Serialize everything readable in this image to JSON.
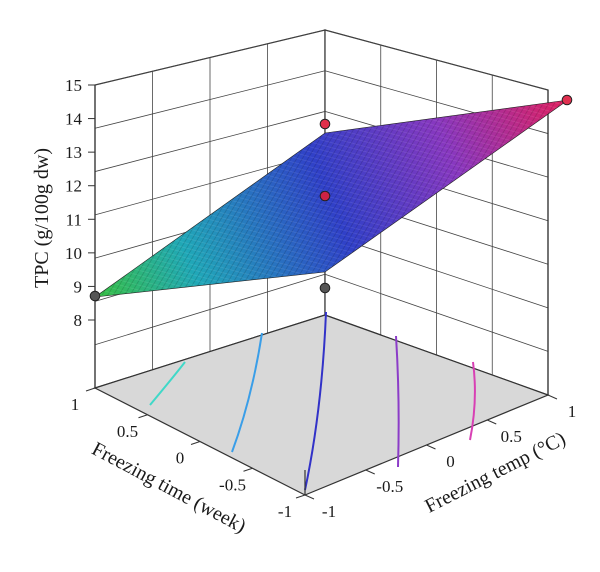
{
  "chart_data": {
    "type": "surface",
    "title": "",
    "zlabel": "TPC (g/100g dw)",
    "xlabel": "Freezing time (week)",
    "ylabel": "Freezing temp (°C)",
    "z_ticks": [
      "8",
      "9",
      "10",
      "11",
      "12",
      "13",
      "14",
      "15"
    ],
    "x_ticks": [
      "1",
      "0.5",
      "0",
      "-0.5",
      "-1"
    ],
    "y_ticks": [
      "-1",
      "-0.5",
      "0",
      "0.5",
      "1"
    ],
    "xlim": [
      -1,
      1
    ],
    "ylim": [
      -1,
      1
    ],
    "zlim": [
      8,
      15
    ],
    "surface_corners": [
      {
        "time": 1,
        "temp": -1,
        "tpc": 8.7
      },
      {
        "time": -1,
        "temp": -1,
        "tpc": 11.6
      },
      {
        "time": -1,
        "temp": 1,
        "tpc": 14.5
      },
      {
        "time": 1,
        "temp": 1,
        "tpc": 12.9
      }
    ],
    "design_points": [
      {
        "time": 1,
        "temp": -1,
        "tpc": 8.65
      },
      {
        "time": 0,
        "temp": 0,
        "tpc": 11.7
      },
      {
        "time": 0,
        "temp": 0,
        "tpc": 13.7
      },
      {
        "time": 0,
        "temp": 0,
        "tpc": 8.9
      },
      {
        "time": -1,
        "temp": 1,
        "tpc": 14.3
      }
    ],
    "contour_colors": [
      "#40d8c8",
      "#3a9ee8",
      "#3232c8",
      "#8c3cc8",
      "#d840b4"
    ],
    "grid": true,
    "floor_color": "#d8d8d8"
  }
}
